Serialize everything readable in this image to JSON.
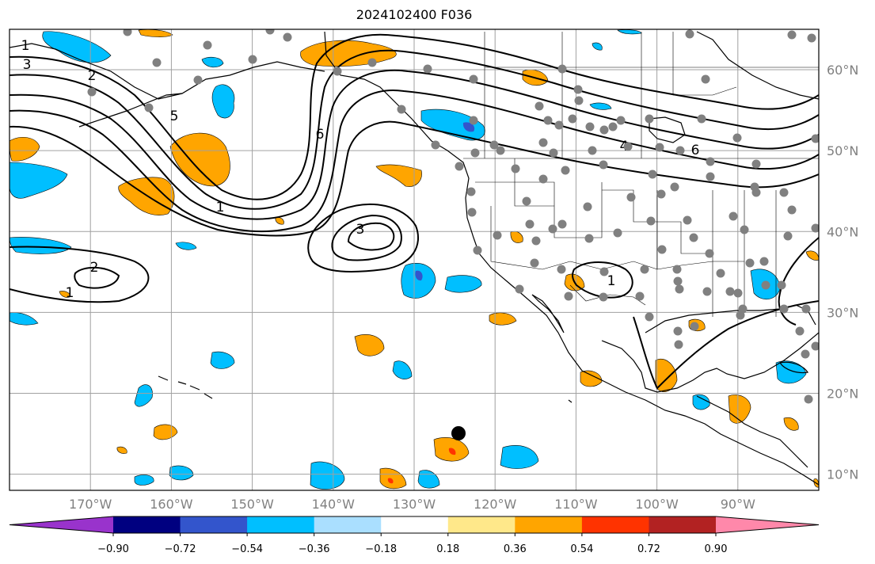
{
  "title": "2024102400 F036",
  "map": {
    "lon_range": [
      -180,
      -80
    ],
    "lat_range": [
      8,
      65
    ],
    "lon_ticks": [
      {
        "value": -170,
        "label": "170°W"
      },
      {
        "value": -160,
        "label": "160°W"
      },
      {
        "value": -150,
        "label": "150°W"
      },
      {
        "value": -140,
        "label": "140°W"
      },
      {
        "value": -130,
        "label": "130°W"
      },
      {
        "value": -120,
        "label": "120°W"
      },
      {
        "value": -110,
        "label": "110°W"
      },
      {
        "value": -100,
        "label": "100°W"
      },
      {
        "value": -90,
        "label": "90°W"
      }
    ],
    "lat_ticks": [
      {
        "value": 60,
        "label": "60°N"
      },
      {
        "value": 50,
        "label": "50°N"
      },
      {
        "value": 40,
        "label": "40°N"
      },
      {
        "value": 30,
        "label": "30°N"
      },
      {
        "value": 20,
        "label": "20°N"
      },
      {
        "value": 10,
        "label": "10°N"
      }
    ],
    "contour_labels": [
      "1",
      "3",
      "2",
      "5",
      "6",
      "1",
      "3",
      "2",
      "1",
      "4",
      "6",
      "1"
    ],
    "colorbar": {
      "colors": [
        "#9933cc",
        "#000080",
        "#3355cc",
        "#00bfff",
        "#aadfff",
        "#ffffff",
        "#ffe88a",
        "#ffa500",
        "#ff3300",
        "#b22222",
        "#ff88aa"
      ],
      "tick_labels": [
        "−0.90",
        "−0.72",
        "−0.54",
        "−0.36",
        "−0.18",
        "0.18",
        "0.36",
        "0.54",
        "0.72",
        "0.90"
      ]
    },
    "marker_color": "#808080",
    "highlight_marker_color": "#000000"
  }
}
